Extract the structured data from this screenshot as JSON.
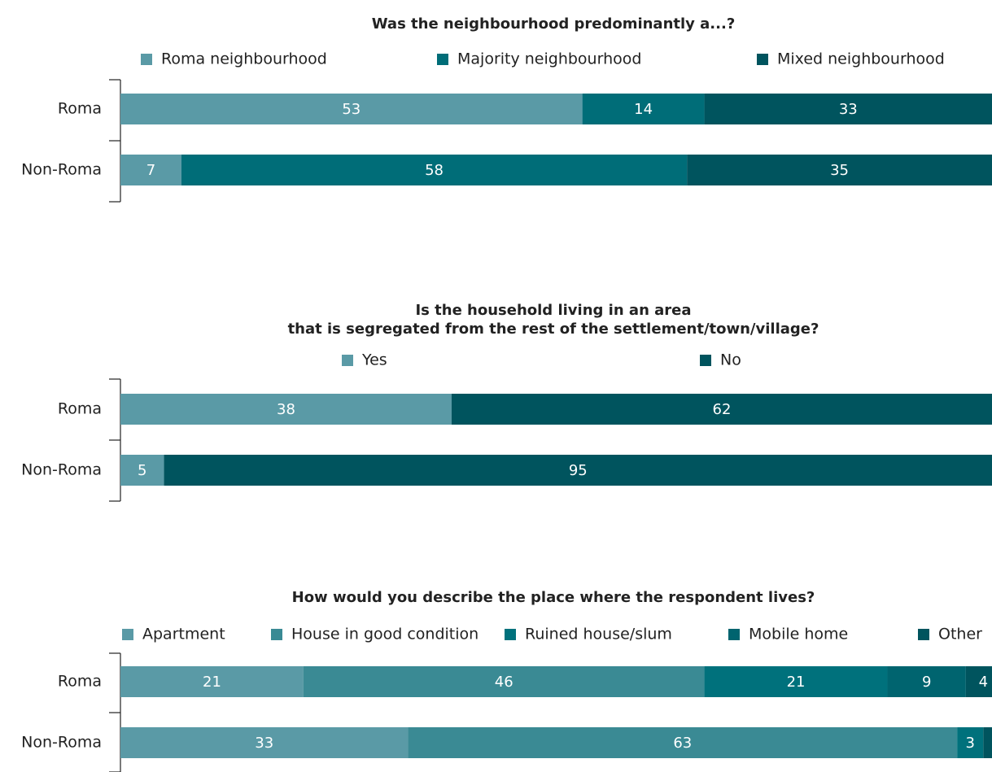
{
  "chart_data": [
    {
      "type": "stacked_bar",
      "orientation": "horizontal",
      "title": [
        "Was the neighbourhood predominantly a...?"
      ],
      "categories": [
        "Roma",
        "Non-Roma"
      ],
      "xlim": [
        0,
        100
      ],
      "series": [
        {
          "name": "Roma neighbourhood",
          "color": "#5a9aa6",
          "values": [
            53,
            7
          ]
        },
        {
          "name": "Majority neighbourhood",
          "color": "#006d78",
          "values": [
            14,
            58
          ]
        },
        {
          "name": "Mixed neighbourhood",
          "color": "#00545e",
          "values": [
            33,
            35
          ]
        }
      ]
    },
    {
      "type": "stacked_bar",
      "orientation": "horizontal",
      "title": [
        "Is the household living in an area",
        "that is segregated from the rest of the settlement/town/village?"
      ],
      "categories": [
        "Roma",
        "Non-Roma"
      ],
      "xlim": [
        0,
        100
      ],
      "series": [
        {
          "name": "Yes",
          "color": "#5a9aa6",
          "values": [
            38,
            5
          ]
        },
        {
          "name": "No",
          "color": "#00545e",
          "values": [
            62,
            95
          ]
        }
      ]
    },
    {
      "type": "stacked_bar",
      "orientation": "horizontal",
      "title": [
        "How would you describe the place where the respondent lives?"
      ],
      "categories": [
        "Roma",
        "Non-Roma"
      ],
      "xlim": [
        0,
        100
      ],
      "series": [
        {
          "name": "Apartment",
          "color": "#5a9aa6",
          "values": [
            21,
            33
          ]
        },
        {
          "name": "House in good condition",
          "color": "#3a8a94",
          "values": [
            46,
            63
          ]
        },
        {
          "name": "Ruined house/slum",
          "color": "#00717c",
          "values": [
            21,
            3
          ]
        },
        {
          "name": "Mobile home",
          "color": "#00646f",
          "values": [
            9,
            0
          ]
        },
        {
          "name": "Other",
          "color": "#00545e",
          "values": [
            4,
            1
          ]
        }
      ]
    }
  ]
}
